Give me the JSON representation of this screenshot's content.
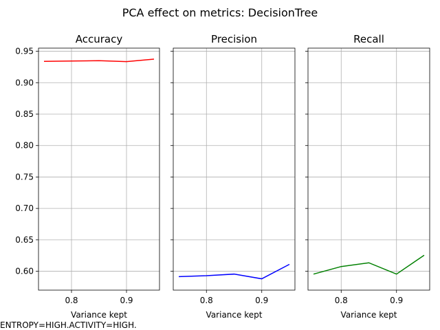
{
  "figure": {
    "suptitle": "PCA effect on metrics: DecisionTree",
    "footer": "ENTROPY=HIGH.ACTIVITY=HIGH."
  },
  "chart_data": [
    {
      "type": "line",
      "title": "Accuracy",
      "xlabel": "Variance kept",
      "ylabel": "",
      "x": [
        0.75,
        0.8,
        0.85,
        0.9,
        0.95
      ],
      "series": [
        {
          "values": [
            0.934,
            0.9345,
            0.935,
            0.9335,
            0.9375
          ],
          "color": "#ff0000"
        }
      ],
      "xlim": [
        0.74,
        0.96
      ],
      "ylim": [
        0.57,
        0.955
      ],
      "xticks": [
        "0.8",
        "0.9"
      ],
      "yticks": [
        "0.60",
        "0.65",
        "0.70",
        "0.75",
        "0.80",
        "0.85",
        "0.90",
        "0.95"
      ],
      "grid": true
    },
    {
      "type": "line",
      "title": "Precision",
      "xlabel": "Variance kept",
      "ylabel": "",
      "x": [
        0.75,
        0.8,
        0.85,
        0.9,
        0.95
      ],
      "series": [
        {
          "values": [
            0.5915,
            0.593,
            0.5955,
            0.588,
            0.611
          ],
          "color": "#0000ff"
        }
      ],
      "xlim": [
        0.74,
        0.96
      ],
      "ylim": [
        0.57,
        0.955
      ],
      "xticks": [
        "0.8",
        "0.9"
      ],
      "yticks": [],
      "grid": true
    },
    {
      "type": "line",
      "title": "Recall",
      "xlabel": "Variance kept",
      "ylabel": "",
      "x": [
        0.75,
        0.8,
        0.85,
        0.9,
        0.95
      ],
      "series": [
        {
          "values": [
            0.5955,
            0.6075,
            0.6135,
            0.5955,
            0.6255
          ],
          "color": "#008000"
        }
      ],
      "xlim": [
        0.74,
        0.96
      ],
      "ylim": [
        0.57,
        0.955
      ],
      "xticks": [
        "0.8",
        "0.9"
      ],
      "yticks": [],
      "grid": true
    }
  ]
}
